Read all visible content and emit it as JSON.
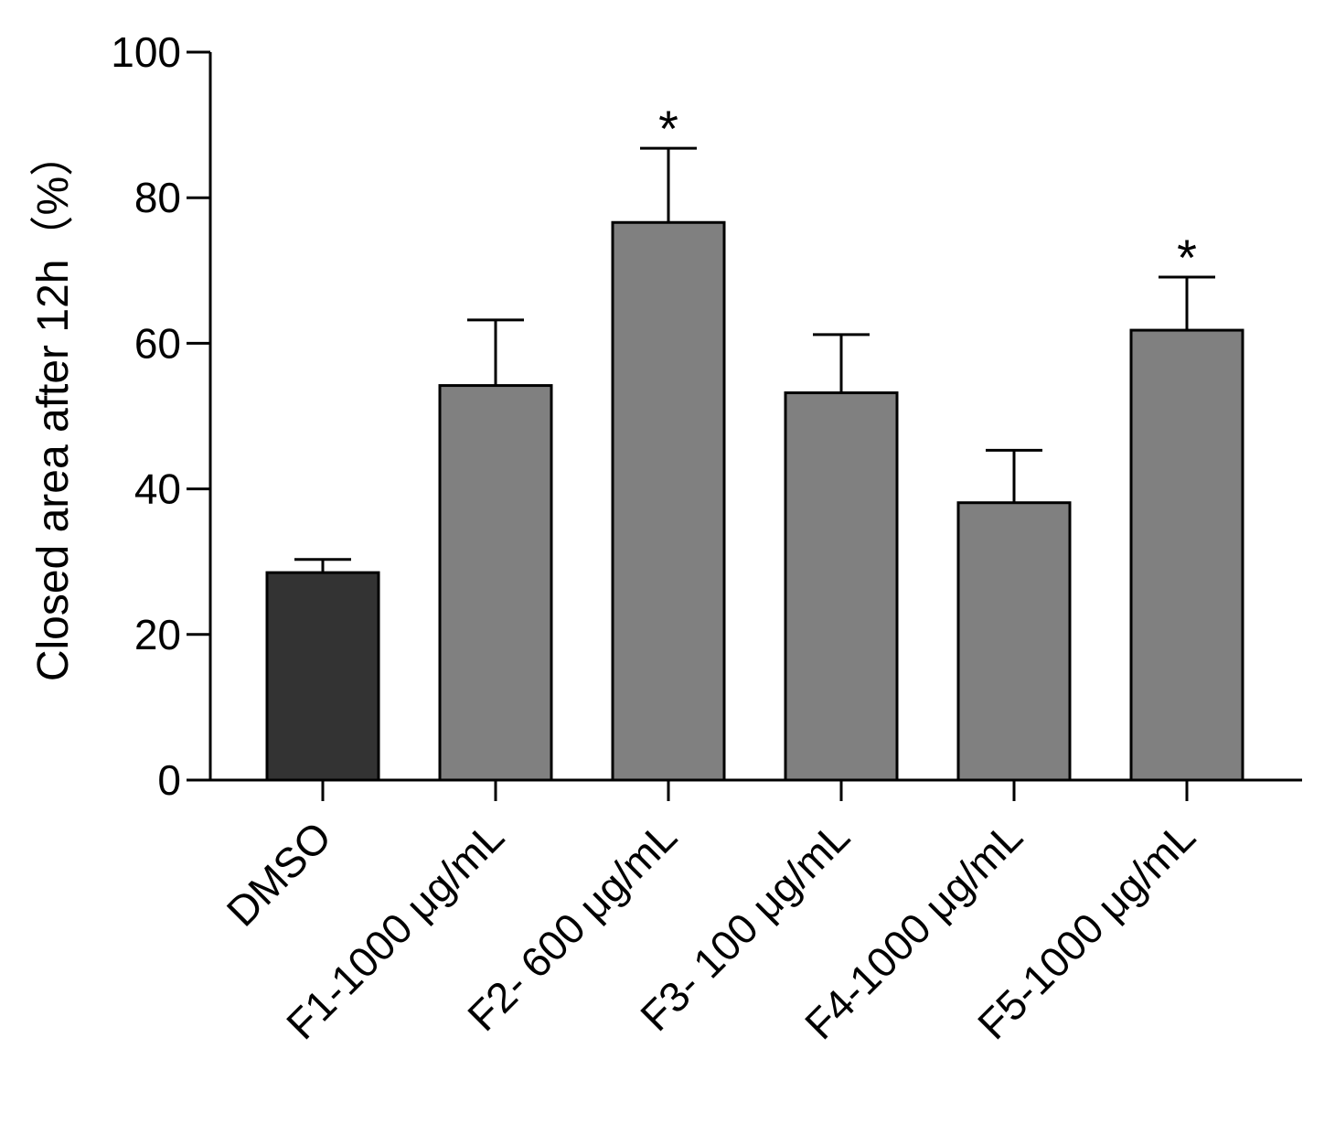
{
  "chart_data": {
    "type": "bar",
    "title": "",
    "xlabel": "",
    "ylabel": "Closed area after 12h（%）",
    "ylim": [
      0,
      100
    ],
    "yticks": [
      0,
      20,
      40,
      60,
      80,
      100
    ],
    "categories": [
      "DMSO",
      "F1-1000 μg/mL",
      "F2- 600 μg/mL",
      "F3- 100 μg/mL",
      "F4-1000 μg/mL",
      "F5-1000 μg/mL"
    ],
    "values": [
      28.5,
      54.2,
      76.6,
      53.2,
      38.1,
      61.8
    ],
    "errors": [
      1.8,
      9.0,
      10.2,
      8.0,
      7.2,
      7.3
    ],
    "significance": [
      "",
      "",
      "*",
      "",
      "",
      "*"
    ],
    "colors": [
      "#333333",
      "#808080",
      "#808080",
      "#808080",
      "#808080",
      "#808080"
    ],
    "grid": false
  }
}
